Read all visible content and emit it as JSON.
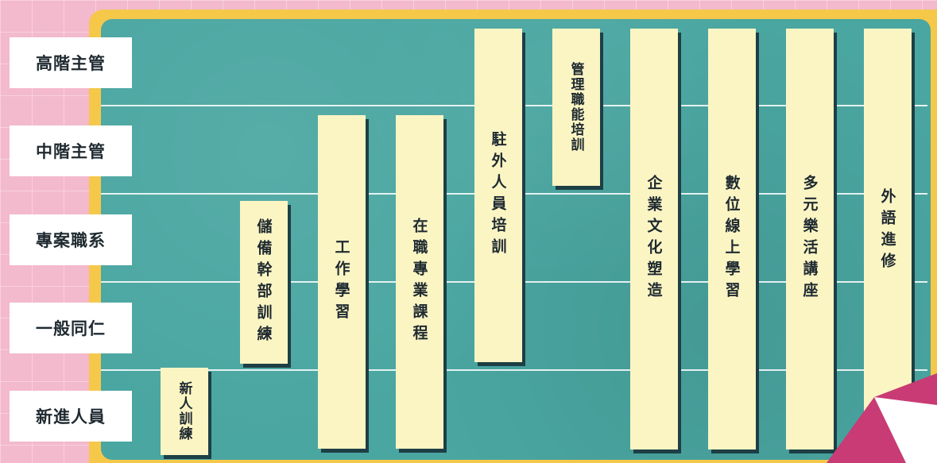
{
  "rows": [
    "高階主管",
    "中階主管",
    "專案職系",
    "一般同仁",
    "新進人員"
  ],
  "programs": [
    "新人訓練",
    "儲備幹部訓練",
    "工作學習",
    "在職專業課程",
    "駐外人員培訓",
    "管理職能培訓",
    "企業文化塑造",
    "數位線上學習",
    "多元樂活講座",
    "外語進修"
  ],
  "colors": {
    "board": "#4aa6a1",
    "frame": "#f6c84a",
    "bar": "#fbf5c4",
    "bar_shadow": "#1d3f45",
    "background": "#f3b9cd",
    "curl": "#c83b74"
  }
}
